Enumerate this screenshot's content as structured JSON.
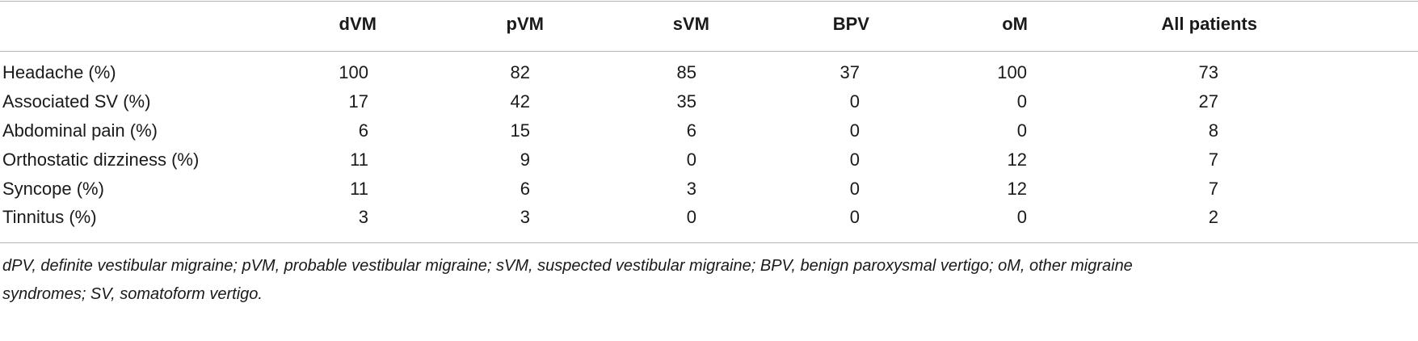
{
  "table": {
    "columns": [
      "dVM",
      "pVM",
      "sVM",
      "BPV",
      "oM",
      "All patients"
    ],
    "rows": [
      {
        "label": "Headache (%)",
        "values": [
          "100",
          "82",
          "85",
          "37",
          "100",
          "73"
        ]
      },
      {
        "label": "Associated SV (%)",
        "values": [
          "17",
          "42",
          "35",
          "0",
          "0",
          "27"
        ]
      },
      {
        "label": "Abdominal pain (%)",
        "values": [
          "6",
          "15",
          "6",
          "0",
          "0",
          "8"
        ]
      },
      {
        "label": "Orthostatic dizziness (%)",
        "values": [
          "11",
          "9",
          "0",
          "0",
          "12",
          "7"
        ]
      },
      {
        "label": "Syncope (%)",
        "values": [
          "11",
          "6",
          "3",
          "0",
          "12",
          "7"
        ]
      },
      {
        "label": "Tinnitus (%)",
        "values": [
          "3",
          "3",
          "0",
          "0",
          "0",
          "2"
        ]
      }
    ]
  },
  "footnote": {
    "line1": "dPV, definite vestibular migraine; pVM, probable vestibular migraine; sVM, suspected vestibular migraine; BPV, benign paroxysmal vertigo; oM, other migraine",
    "line2": "syndromes; SV, somatoform vertigo."
  }
}
